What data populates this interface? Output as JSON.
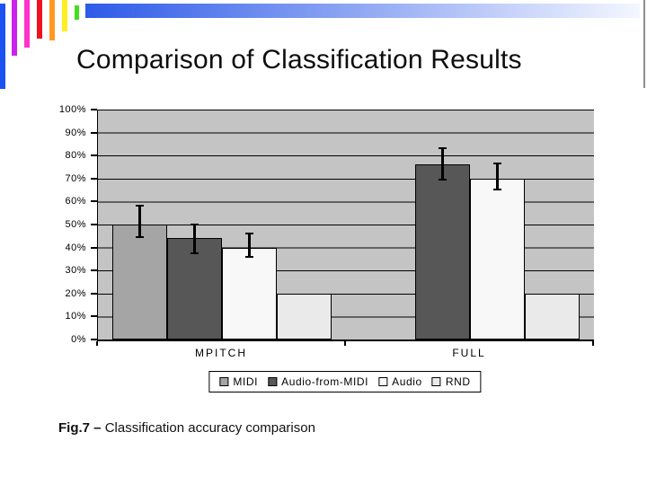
{
  "slide": {
    "title": "Comparison of Classification Results",
    "caption_prefix": "Fig.7 –",
    "caption_text": "Classification accuracy comparison"
  },
  "theme": {
    "background": "#ffffff",
    "decoration_bar_colors": [
      "#1b52f1",
      "#cc22ee",
      "#ff33cc",
      "#ee1122",
      "#ff9922",
      "#ffee22",
      "#44dd22"
    ],
    "header_gradient": [
      "#2e5be8",
      "#f4f7ff"
    ],
    "right_rule_color": "#8f8f8f"
  },
  "chart_data": {
    "type": "bar",
    "title": "",
    "xlabel": "",
    "ylabel": "",
    "categories": [
      "MPITCH",
      "FULL"
    ],
    "series": [
      {
        "name": "MIDI",
        "fill": "#a5a5a5",
        "values": [
          50,
          0
        ],
        "error_bars": [
          [
            44,
            58.5
          ],
          null
        ]
      },
      {
        "name": "Audio-from-MIDI",
        "fill": "#575757",
        "values": [
          44,
          76
        ],
        "error_bars": [
          [
            37,
            50.5
          ],
          [
            69,
            83.5
          ]
        ]
      },
      {
        "name": "Audio",
        "fill": "#f8f8f8",
        "values": [
          40,
          70
        ],
        "error_bars": [
          [
            35.5,
            46.5
          ],
          [
            65,
            77
          ]
        ]
      },
      {
        "name": "RND",
        "fill": "#eaeaea",
        "values": [
          20,
          20
        ],
        "error_bars": [
          null,
          null
        ]
      }
    ],
    "ylim": [
      0,
      100
    ],
    "yticks": [
      "0%",
      "10%",
      "20%",
      "30%",
      "40%",
      "50%",
      "60%",
      "70%",
      "80%",
      "90%",
      "100%"
    ],
    "grid": true,
    "plot_background": "#c4c4c4",
    "legend_position": "bottom"
  }
}
